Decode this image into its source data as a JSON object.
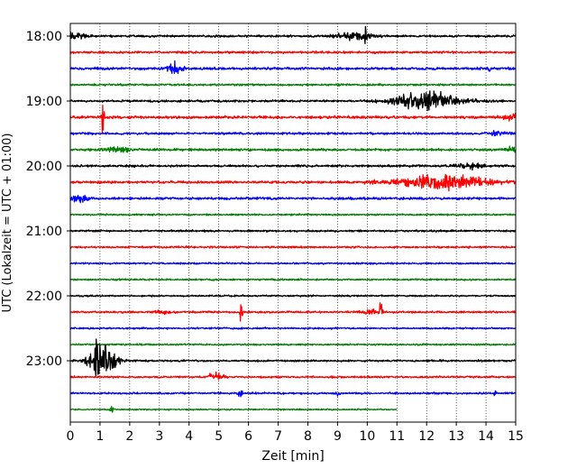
{
  "chart_data": {
    "type": "line",
    "title": "",
    "xlabel": "Zeit  [min]",
    "ylabel": "UTC (Lokalzeit = UTC + 01:00)",
    "xlim": [
      0,
      15
    ],
    "x_ticks": [
      "0",
      "1",
      "2",
      "3",
      "4",
      "5",
      "6",
      "7",
      "8",
      "9",
      "10",
      "11",
      "12",
      "13",
      "14",
      "15"
    ],
    "y_tick_labels": [
      "18:00",
      "19:00",
      "20:00",
      "21:00",
      "22:00",
      "23:00"
    ],
    "trace_colors": [
      "#000000",
      "#ff0000",
      "#0000ff",
      "#008000"
    ],
    "traces": [
      {
        "start": "18:00",
        "end_min": 15,
        "noise": 0.9,
        "events": [
          {
            "t": 0.2,
            "amp": 2.5,
            "w": 0.3
          },
          {
            "t": 9.6,
            "amp": 3,
            "w": 0.6
          },
          {
            "t": 9.95,
            "amp": 8,
            "w": 0.04
          }
        ]
      },
      {
        "start": "18:15",
        "end_min": 15,
        "noise": 0.9,
        "events": []
      },
      {
        "start": "18:30",
        "end_min": 15,
        "noise": 1.0,
        "events": [
          {
            "t": 3.5,
            "amp": 5,
            "w": 0.25
          },
          {
            "t": 14.1,
            "amp": 6,
            "w": 0.05
          }
        ]
      },
      {
        "start": "18:45",
        "end_min": 15,
        "noise": 0.8,
        "events": []
      },
      {
        "start": "19:00",
        "end_min": 15,
        "noise": 0.9,
        "events": [
          {
            "t": 12.0,
            "amp": 7,
            "w": 1.1
          }
        ]
      },
      {
        "start": "19:15",
        "end_min": 15,
        "noise": 1.1,
        "events": [
          {
            "t": 1.1,
            "amp": 14,
            "w": 0.04
          },
          {
            "t": 14.9,
            "amp": 2.5,
            "w": 0.3
          }
        ]
      },
      {
        "start": "19:30",
        "end_min": 15,
        "noise": 0.9,
        "events": [
          {
            "t": 14.4,
            "amp": 2,
            "w": 0.3
          }
        ]
      },
      {
        "start": "19:45",
        "end_min": 15,
        "noise": 1.0,
        "events": [
          {
            "t": 1.6,
            "amp": 2.5,
            "w": 0.4
          },
          {
            "t": 14.9,
            "amp": 2.5,
            "w": 0.2
          }
        ]
      },
      {
        "start": "20:00",
        "end_min": 15,
        "noise": 0.9,
        "events": [
          {
            "t": 13.5,
            "amp": 2,
            "w": 0.5
          }
        ]
      },
      {
        "start": "20:15",
        "end_min": 15,
        "noise": 1.0,
        "events": [
          {
            "t": 12.5,
            "amp": 6,
            "w": 1.5
          }
        ]
      },
      {
        "start": "20:30",
        "end_min": 15,
        "noise": 1.0,
        "events": [
          {
            "t": 0.3,
            "amp": 3,
            "w": 0.3
          }
        ]
      },
      {
        "start": "20:45",
        "end_min": 15,
        "noise": 0.7,
        "events": []
      },
      {
        "start": "21:00",
        "end_min": 15,
        "noise": 0.8,
        "events": []
      },
      {
        "start": "21:15",
        "end_min": 15,
        "noise": 0.8,
        "events": []
      },
      {
        "start": "21:30",
        "end_min": 15,
        "noise": 0.7,
        "events": []
      },
      {
        "start": "21:45",
        "end_min": 15,
        "noise": 0.7,
        "events": []
      },
      {
        "start": "22:00",
        "end_min": 15,
        "noise": 0.7,
        "events": []
      },
      {
        "start": "22:15",
        "end_min": 15,
        "noise": 0.8,
        "events": [
          {
            "t": 3.1,
            "amp": 1.5,
            "w": 0.3
          },
          {
            "t": 5.75,
            "amp": 9,
            "w": 0.05
          },
          {
            "t": 10.45,
            "amp": 9,
            "w": 0.05
          },
          {
            "t": 10.1,
            "amp": 2,
            "w": 0.3
          }
        ]
      },
      {
        "start": "22:30",
        "end_min": 15,
        "noise": 0.7,
        "events": []
      },
      {
        "start": "22:45",
        "end_min": 15,
        "noise": 0.7,
        "events": []
      },
      {
        "start": "23:00",
        "end_min": 15,
        "noise": 0.8,
        "events": [
          {
            "t": 1.1,
            "amp": 12,
            "w": 0.45
          },
          {
            "t": 0.9,
            "amp": 26,
            "w": 0.06
          }
        ]
      },
      {
        "start": "23:15",
        "end_min": 15,
        "noise": 0.8,
        "events": [
          {
            "t": 4.9,
            "amp": 3.5,
            "w": 0.25
          }
        ]
      },
      {
        "start": "23:30",
        "end_min": 15,
        "noise": 0.8,
        "events": [
          {
            "t": 5.7,
            "amp": 3,
            "w": 0.1
          },
          {
            "t": 9.0,
            "amp": 2.5,
            "w": 0.06
          },
          {
            "t": 14.3,
            "amp": 2.5,
            "w": 0.06
          }
        ]
      },
      {
        "start": "23:45",
        "end_min": 11,
        "noise": 0.6,
        "events": [
          {
            "t": 1.4,
            "amp": 2,
            "w": 0.06
          }
        ]
      }
    ],
    "grid": "vertical dotted",
    "legend": "none"
  }
}
